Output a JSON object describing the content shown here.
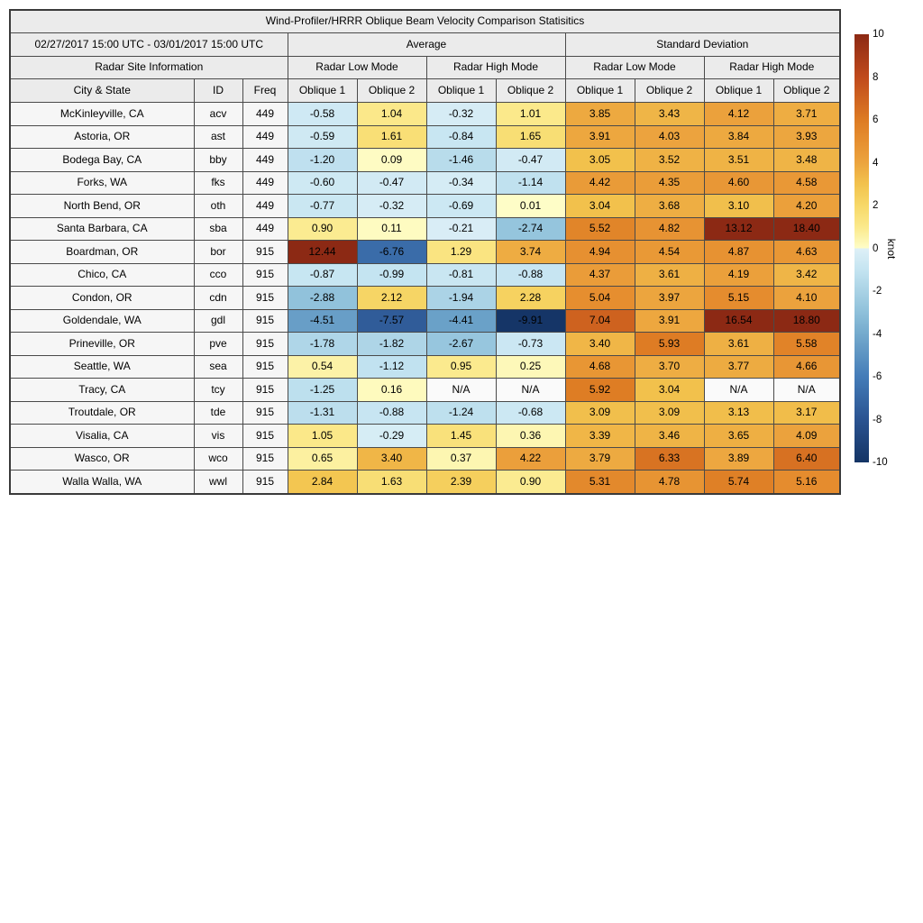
{
  "chart_data": {
    "type": "heatmap",
    "title": "Wind-Profiler/HRRR Oblique Beam Velocity Comparison Statisitics",
    "date_range": "02/27/2017 15:00 UTC - 03/01/2017 15:00 UTC",
    "group_headers": {
      "average": "Average",
      "std": "Standard Deviation"
    },
    "mode_headers": {
      "site_info": "Radar Site Information",
      "low": "Radar Low Mode",
      "high": "Radar High Mode"
    },
    "column_headers": [
      "City & State",
      "ID",
      "Freq",
      "Oblique 1",
      "Oblique 2",
      "Oblique 1",
      "Oblique 2",
      "Oblique 1",
      "Oblique 2",
      "Oblique 1",
      "Oblique 2"
    ],
    "rows": [
      {
        "city": "McKinleyville, CA",
        "id": "acv",
        "freq": "449",
        "values": [
          "-0.58",
          "1.04",
          "-0.32",
          "1.01",
          "3.85",
          "3.43",
          "4.12",
          "3.71"
        ]
      },
      {
        "city": "Astoria, OR",
        "id": "ast",
        "freq": "449",
        "values": [
          "-0.59",
          "1.61",
          "-0.84",
          "1.65",
          "3.91",
          "4.03",
          "3.84",
          "3.93"
        ]
      },
      {
        "city": "Bodega Bay, CA",
        "id": "bby",
        "freq": "449",
        "values": [
          "-1.20",
          "0.09",
          "-1.46",
          "-0.47",
          "3.05",
          "3.52",
          "3.51",
          "3.48"
        ]
      },
      {
        "city": "Forks, WA",
        "id": "fks",
        "freq": "449",
        "values": [
          "-0.60",
          "-0.47",
          "-0.34",
          "-1.14",
          "4.42",
          "4.35",
          "4.60",
          "4.58"
        ]
      },
      {
        "city": "North Bend, OR",
        "id": "oth",
        "freq": "449",
        "values": [
          "-0.77",
          "-0.32",
          "-0.69",
          "0.01",
          "3.04",
          "3.68",
          "3.10",
          "4.20"
        ]
      },
      {
        "city": "Santa Barbara, CA",
        "id": "sba",
        "freq": "449",
        "values": [
          "0.90",
          "0.11",
          "-0.21",
          "-2.74",
          "5.52",
          "4.82",
          "13.12",
          "18.40"
        ]
      },
      {
        "city": "Boardman, OR",
        "id": "bor",
        "freq": "915",
        "values": [
          "12.44",
          "-6.76",
          "1.29",
          "3.74",
          "4.94",
          "4.54",
          "4.87",
          "4.63"
        ]
      },
      {
        "city": "Chico, CA",
        "id": "cco",
        "freq": "915",
        "values": [
          "-0.87",
          "-0.99",
          "-0.81",
          "-0.88",
          "4.37",
          "3.61",
          "4.19",
          "3.42"
        ]
      },
      {
        "city": "Condon, OR",
        "id": "cdn",
        "freq": "915",
        "values": [
          "-2.88",
          "2.12",
          "-1.94",
          "2.28",
          "5.04",
          "3.97",
          "5.15",
          "4.10"
        ]
      },
      {
        "city": "Goldendale, WA",
        "id": "gdl",
        "freq": "915",
        "values": [
          "-4.51",
          "-7.57",
          "-4.41",
          "-9.91",
          "7.04",
          "3.91",
          "16.54",
          "18.80"
        ]
      },
      {
        "city": "Prineville, OR",
        "id": "pve",
        "freq": "915",
        "values": [
          "-1.78",
          "-1.82",
          "-2.67",
          "-0.73",
          "3.40",
          "5.93",
          "3.61",
          "5.58"
        ]
      },
      {
        "city": "Seattle, WA",
        "id": "sea",
        "freq": "915",
        "values": [
          "0.54",
          "-1.12",
          "0.95",
          "0.25",
          "4.68",
          "3.70",
          "3.77",
          "4.66"
        ]
      },
      {
        "city": "Tracy, CA",
        "id": "tcy",
        "freq": "915",
        "values": [
          "-1.25",
          "0.16",
          "N/A",
          "N/A",
          "5.92",
          "3.04",
          "N/A",
          "N/A"
        ]
      },
      {
        "city": "Troutdale, OR",
        "id": "tde",
        "freq": "915",
        "values": [
          "-1.31",
          "-0.88",
          "-1.24",
          "-0.68",
          "3.09",
          "3.09",
          "3.13",
          "3.17"
        ]
      },
      {
        "city": "Visalia, CA",
        "id": "vis",
        "freq": "915",
        "values": [
          "1.05",
          "-0.29",
          "1.45",
          "0.36",
          "3.39",
          "3.46",
          "3.65",
          "4.09"
        ]
      },
      {
        "city": "Wasco, OR",
        "id": "wco",
        "freq": "915",
        "values": [
          "0.65",
          "3.40",
          "0.37",
          "4.22",
          "3.79",
          "6.33",
          "3.89",
          "6.40"
        ]
      },
      {
        "city": "Walla Walla, WA",
        "id": "wwl",
        "freq": "915",
        "values": [
          "2.84",
          "1.63",
          "2.39",
          "0.90",
          "5.31",
          "4.78",
          "5.74",
          "5.16"
        ]
      }
    ],
    "colorbar": {
      "label": "knot",
      "min": -10,
      "max": 10,
      "ticks": [
        10,
        8,
        6,
        4,
        2,
        0,
        -2,
        -4,
        -6,
        -8,
        -10
      ]
    },
    "colormap": {
      "na_color": "#fafafa",
      "positive_stops": [
        [
          0,
          "#fefdc8"
        ],
        [
          1,
          "#fbe98b"
        ],
        [
          2,
          "#f7d868"
        ],
        [
          3,
          "#f2c24d"
        ],
        [
          4,
          "#eca43e"
        ],
        [
          5,
          "#e68f30"
        ],
        [
          6,
          "#dd7b23"
        ],
        [
          8,
          "#c04a1c"
        ],
        [
          10,
          "#8c2914"
        ]
      ],
      "negative_stops": [
        [
          0,
          "#def0f7"
        ],
        [
          -1,
          "#c4e4f1"
        ],
        [
          -2,
          "#a9d2e5"
        ],
        [
          -3,
          "#8ec0da"
        ],
        [
          -4,
          "#74aacd"
        ],
        [
          -5,
          "#5c93c2"
        ],
        [
          -6,
          "#447cb8"
        ],
        [
          -8,
          "#2a5391"
        ],
        [
          -10,
          "#143465"
        ]
      ]
    }
  }
}
